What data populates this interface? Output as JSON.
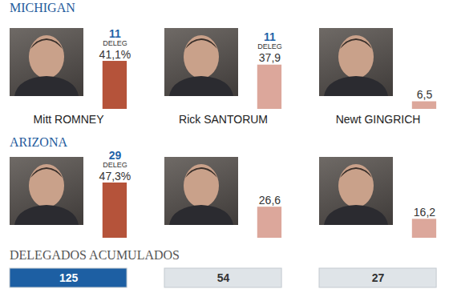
{
  "chart_data": [
    {
      "type": "bar",
      "title": "MICHIGAN",
      "categories": [
        "Mitt ROMNEY",
        "Rick SANTORUM",
        "Newt GINGRICH"
      ],
      "values": [
        41.1,
        37.9,
        6.5
      ],
      "value_labels": [
        "41,1%",
        "37,9",
        "6,5"
      ],
      "delegates": [
        11,
        11,
        null
      ],
      "delegates_label": "DELEG",
      "colors": [
        "#b5533a",
        "#dca79b",
        "#dca79b"
      ],
      "data_labels": true
    },
    {
      "type": "bar",
      "title": "ARIZONA",
      "categories": [
        null,
        null,
        null
      ],
      "values": [
        47.3,
        26.6,
        16.2
      ],
      "value_labels": [
        "47,3%",
        "26,6",
        "16,2"
      ],
      "delegates": [
        29,
        null,
        null
      ],
      "delegates_label": "DELEG",
      "colors": [
        "#b5533a",
        "#dca79b",
        "#dca79b"
      ],
      "data_labels": true
    },
    {
      "type": "cell",
      "title": "DELEGADOS ACUMULADOS",
      "categories": [
        null,
        null,
        null
      ],
      "values": [
        125,
        54,
        27
      ],
      "colors": [
        "#1d5fa3",
        "#dfe4e8",
        "#dfe4e8"
      ],
      "data_labels": true
    }
  ]
}
